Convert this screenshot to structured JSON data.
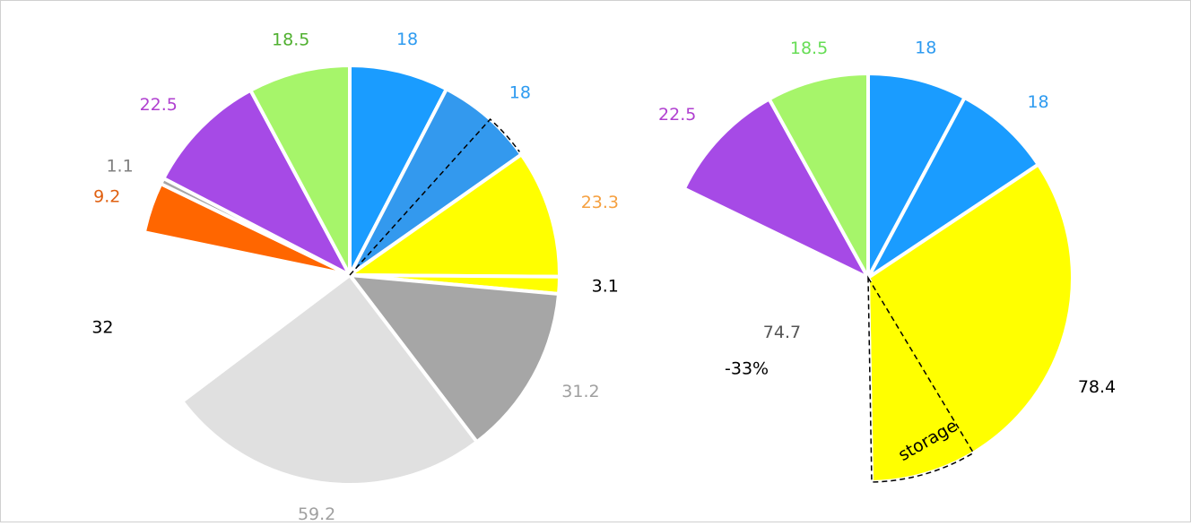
{
  "chart_data": [
    {
      "type": "pie",
      "values": [
        18.0,
        18.0,
        23.3,
        3.1,
        31.2,
        59.2,
        32.0,
        9.2,
        1.1,
        22.5,
        18.5
      ],
      "colors": [
        "#1a9cff",
        "#3399ee",
        "#ffff00",
        "#ffff00",
        "#a6a6a6",
        "#e0e0e0",
        "#ffffff",
        "#ff6600",
        "#a6a6a6",
        "#a64ae6",
        "#a6f56a"
      ],
      "label_colors": [
        "#2e9bf0",
        "#2e9bf0",
        "#f5a040",
        "#000000",
        "#a0a0a0",
        "#a0a0a0",
        "#000000",
        "#e06010",
        "#808080",
        "#b040d0",
        "#50b030"
      ]
    },
    {
      "type": "pie",
      "values": [
        18.0,
        18.0,
        78.4,
        74.7,
        22.5,
        18.5
      ],
      "colors": [
        "#1a9cff",
        "#1a9cff",
        "#ffff00",
        "#ffffff",
        "#a64ae6",
        "#a6f56a"
      ],
      "label_colors": [
        "#2e9bf0",
        "#2e9bf0",
        "#000000",
        "#555555",
        "#b040d0",
        "#66dd55"
      ],
      "annotations": [
        "-33%",
        "storage"
      ]
    }
  ]
}
